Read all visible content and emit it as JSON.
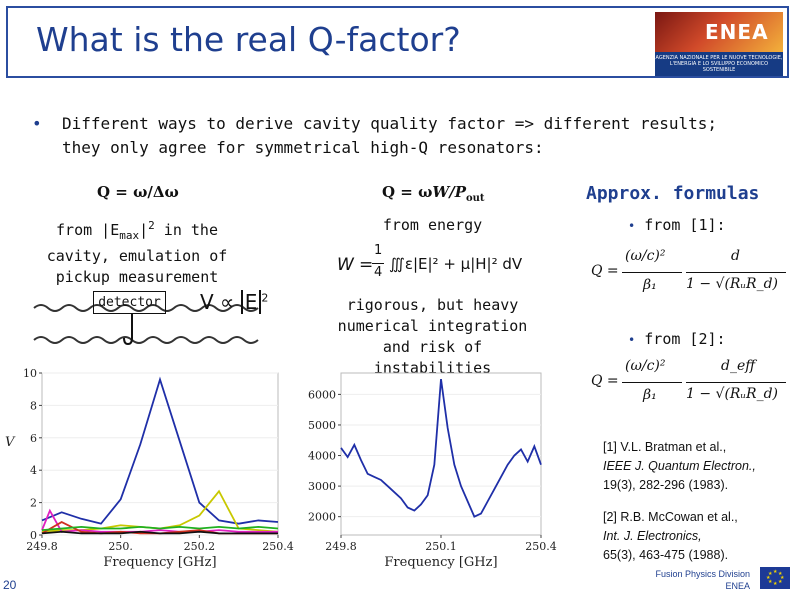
{
  "title": "What is the real Q-factor?",
  "logo": {
    "word": "ENEA",
    "subtitle": "AGENZIA NAZIONALE PER LE NUOVE TECNOLOGIE, L'ENERGIA E LO SVILUPPO ECONOMICO SOSTENIBILE"
  },
  "intro": {
    "bullet": "•",
    "text": "Different ways to derive cavity quality factor => different results; they only agree for symmetrical high-Q resonators:"
  },
  "columns": {
    "col1": {
      "formula": "Q = ω/Δω",
      "desc": "from |Emax|2 in the cavity, emulation of pickup measurement",
      "desc_lines": [
        "from |E",
        "max",
        "|",
        "2",
        " in the",
        "cavity, emulation of",
        "pickup measurement"
      ],
      "detector_label": "detector",
      "v_formula_v": "V",
      "v_formula_rel": "∝",
      "v_formula_e": "E",
      "v_formula_exp": "2"
    },
    "col2": {
      "formula_q": "Q = ω",
      "formula_w": "W/P",
      "formula_sub": "out",
      "desc": "from energy",
      "energy_w": "W",
      "energy_eq": "=",
      "energy_frac_num": "1",
      "energy_frac_den": "4",
      "energy_body": "∭ε|E|² + μ|H|² dV",
      "note": "rigorous, but heavy numerical integration and risk of instabilities",
      "note_lines": [
        "rigorous, but heavy",
        "numerical integration",
        "and risk of instabilities"
      ]
    },
    "col3": {
      "heading": "Approx. formulas",
      "bullet": "•",
      "from1": "from [1]:",
      "from2": "from [2]:",
      "q_label": "Q =",
      "f1_num1": "(ω/c)²",
      "f1_den1": "β₁",
      "f1_num2": "d",
      "f1_den2": "1 − √(RᵤR_d)",
      "f2_num1": "(ω/c)²",
      "f2_den1": "β₁",
      "f2_num2": "d_eff",
      "f2_den2": "1 − √(RᵤR_d)"
    }
  },
  "references": {
    "ref1_lines": [
      "[1] V.L. Bratman et al.,",
      "IEEE J. Quantum Electron.,",
      "19(3), 282-296 (1983)."
    ],
    "ref2_lines": [
      "[2] R.B. McCowan et al.,",
      "Int. J. Electronics,",
      "65(3), 463-475 (1988)."
    ]
  },
  "footer": {
    "slide_number": "20",
    "division": "Fusion Physics Division",
    "org": "ENEA"
  },
  "chart_data": [
    {
      "type": "line",
      "xlabel": "Frequency [GHz]",
      "ylabel": "V",
      "xlim": [
        249.8,
        250.4
      ],
      "ylim": [
        0,
        10
      ],
      "x_ticks": [
        "249.8",
        "250.",
        "250.2",
        "250.4"
      ],
      "y_ticks": [
        "0",
        "2",
        "4",
        "6",
        "8",
        "10"
      ],
      "series": [
        {
          "color": "#1f2fa8",
          "x": [
            249.8,
            249.85,
            249.9,
            249.95,
            250.0,
            250.05,
            250.1,
            250.15,
            250.2,
            250.25,
            250.3,
            250.35,
            250.4
          ],
          "values": [
            0.9,
            1.4,
            1.0,
            0.7,
            2.2,
            5.6,
            9.6,
            5.8,
            2.0,
            0.9,
            0.7,
            0.9,
            0.8
          ]
        },
        {
          "color": "#c8c800",
          "x": [
            249.8,
            249.85,
            249.9,
            249.95,
            250.0,
            250.05,
            250.1,
            250.15,
            250.2,
            250.25,
            250.3,
            250.35,
            250.4
          ],
          "values": [
            0.2,
            0.3,
            0.3,
            0.4,
            0.6,
            0.5,
            0.4,
            0.6,
            1.2,
            2.7,
            0.4,
            0.3,
            0.2
          ]
        },
        {
          "color": "#e020c0",
          "x": [
            249.8,
            249.82,
            249.85,
            249.9,
            249.95,
            250.0,
            250.05,
            250.1,
            250.15,
            250.2,
            250.25,
            250.3,
            250.35,
            250.4
          ],
          "values": [
            0.3,
            1.5,
            0.2,
            0.3,
            0.2,
            0.2,
            0.2,
            0.3,
            0.2,
            0.2,
            0.3,
            0.2,
            0.2,
            0.2
          ]
        },
        {
          "color": "#d03020",
          "x": [
            249.8,
            249.85,
            249.9,
            249.95,
            250.0,
            250.05,
            250.1,
            250.15,
            250.2,
            250.25,
            250.3,
            250.35,
            250.4
          ],
          "values": [
            0.1,
            0.8,
            0.2,
            0.1,
            0.2,
            0.1,
            0.1,
            0.2,
            0.3,
            0.1,
            0.1,
            0.1,
            0.1
          ]
        },
        {
          "color": "#20b020",
          "x": [
            249.8,
            249.85,
            249.9,
            249.95,
            250.0,
            250.05,
            250.1,
            250.15,
            250.2,
            250.25,
            250.3,
            250.35,
            250.4
          ],
          "values": [
            0.3,
            0.4,
            0.5,
            0.4,
            0.4,
            0.5,
            0.4,
            0.5,
            0.4,
            0.5,
            0.4,
            0.5,
            0.4
          ]
        },
        {
          "color": "#111111",
          "x": [
            249.8,
            249.85,
            249.9,
            249.95,
            250.0,
            250.05,
            250.1,
            250.15,
            250.2,
            250.25,
            250.3,
            250.35,
            250.4
          ],
          "values": [
            0.1,
            0.2,
            0.1,
            0.1,
            0.1,
            0.2,
            0.1,
            0.1,
            0.2,
            0.1,
            0.1,
            0.1,
            0.1
          ]
        }
      ]
    },
    {
      "type": "line",
      "xlabel": "Frequency [GHz]",
      "xlim": [
        249.8,
        250.4
      ],
      "ylim": [
        1400,
        6700
      ],
      "x_ticks": [
        "249.8",
        "250.1",
        "250.4"
      ],
      "y_ticks": [
        "2000",
        "3000",
        "4000",
        "5000",
        "6000"
      ],
      "series": [
        {
          "color": "#1f2fa8",
          "x": [
            249.8,
            249.82,
            249.84,
            249.86,
            249.88,
            249.9,
            249.92,
            249.94,
            249.96,
            249.98,
            250.0,
            250.02,
            250.04,
            250.06,
            250.08,
            250.1,
            250.12,
            250.14,
            250.16,
            250.18,
            250.2,
            250.22,
            250.24,
            250.26,
            250.28,
            250.3,
            250.32,
            250.34,
            250.36,
            250.38,
            250.4
          ],
          "values": [
            4250,
            3950,
            4350,
            3850,
            3400,
            3300,
            3200,
            3000,
            2800,
            2600,
            2300,
            2200,
            2400,
            2700,
            3700,
            6500,
            4900,
            3700,
            3000,
            2500,
            2000,
            2100,
            2500,
            2900,
            3300,
            3700,
            4000,
            4200,
            3800,
            4300,
            3700
          ]
        }
      ]
    }
  ]
}
